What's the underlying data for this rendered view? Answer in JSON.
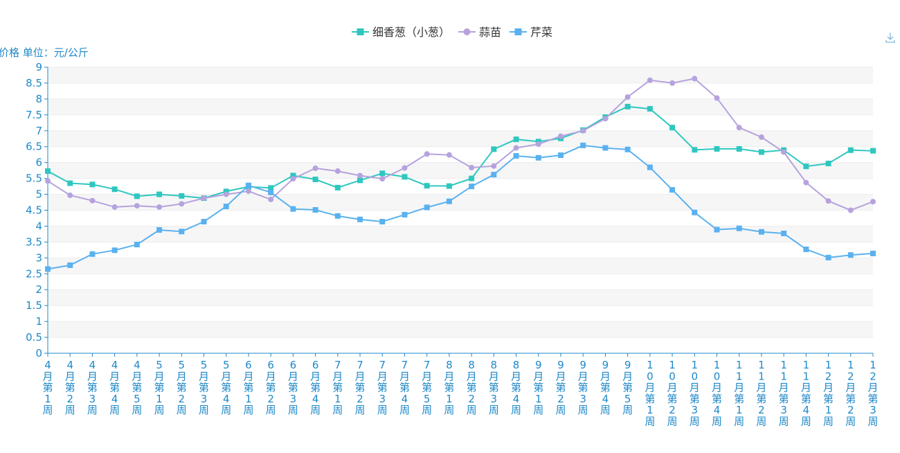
{
  "chart_data": {
    "type": "line",
    "y_axis_label": "价格 单位：元/公斤",
    "ylim": [
      0,
      9
    ],
    "y_ticks": [
      "0",
      "0.5",
      "1",
      "1.5",
      "2",
      "2.5",
      "3",
      "3.5",
      "4",
      "4.5",
      "5",
      "5.5",
      "6",
      "6.5",
      "7",
      "7.5",
      "8",
      "8.5",
      "9"
    ],
    "grid": "horizontal alternating bands",
    "legend_position": "top-center",
    "categories": [
      "4月第1周",
      "4月第2周",
      "4月第3周",
      "4月第4周",
      "4月第5周",
      "5月第1周",
      "5月第2周",
      "5月第3周",
      "5月第4周",
      "6月第1周",
      "6月第2周",
      "6月第3周",
      "6月第4周",
      "7月第1周",
      "7月第2周",
      "7月第3周",
      "7月第4周",
      "7月第5周",
      "8月第1周",
      "8月第2周",
      "8月第3周",
      "8月第4周",
      "9月第1周",
      "9月第2周",
      "9月第3周",
      "9月第4周",
      "9月第5周",
      "10月第1周",
      "10月第2周",
      "10月第3周",
      "10月第4周",
      "11月第1周",
      "11月第2周",
      "11月第3周",
      "11月第4周",
      "12月第1周",
      "12月第2周",
      "12月第3周"
    ],
    "series": [
      {
        "name": "细香葱（小葱）",
        "color": "#2ec7c0",
        "marker": "square",
        "values": [
          5.73,
          5.35,
          5.31,
          5.16,
          4.94,
          5.0,
          4.95,
          4.88,
          5.09,
          5.24,
          5.2,
          5.59,
          5.47,
          5.21,
          5.44,
          5.66,
          5.55,
          5.27,
          5.26,
          5.5,
          6.42,
          6.73,
          6.66,
          6.76,
          7.02,
          7.43,
          7.76,
          7.69,
          7.1,
          6.4,
          6.43,
          6.43,
          6.33,
          6.39,
          5.88,
          5.97,
          6.39,
          6.37
        ]
      },
      {
        "name": "蒜苗",
        "color": "#b6a2de",
        "marker": "circle",
        "values": [
          5.42,
          4.97,
          4.8,
          4.6,
          4.64,
          4.6,
          4.7,
          4.88,
          5.0,
          5.1,
          4.84,
          5.49,
          5.82,
          5.73,
          5.59,
          5.49,
          5.83,
          6.27,
          6.24,
          5.84,
          5.89,
          6.46,
          6.58,
          6.83,
          7.0,
          7.38,
          8.06,
          8.59,
          8.5,
          8.64,
          8.03,
          7.1,
          6.8,
          6.33,
          5.37,
          4.79,
          4.5,
          4.77
        ]
      },
      {
        "name": "芹菜",
        "color": "#5ab1ef",
        "marker": "square",
        "values": [
          2.65,
          2.77,
          3.12,
          3.24,
          3.42,
          3.88,
          3.83,
          4.14,
          4.62,
          5.28,
          5.06,
          4.54,
          4.51,
          4.32,
          4.21,
          4.14,
          4.36,
          4.59,
          4.78,
          5.25,
          5.62,
          6.21,
          6.15,
          6.23,
          6.54,
          6.46,
          6.41,
          5.85,
          5.14,
          4.43,
          3.89,
          3.93,
          3.82,
          3.77,
          3.27,
          3.01,
          3.09,
          3.14
        ]
      }
    ]
  },
  "toolbar": {
    "download_icon": "download-icon"
  }
}
